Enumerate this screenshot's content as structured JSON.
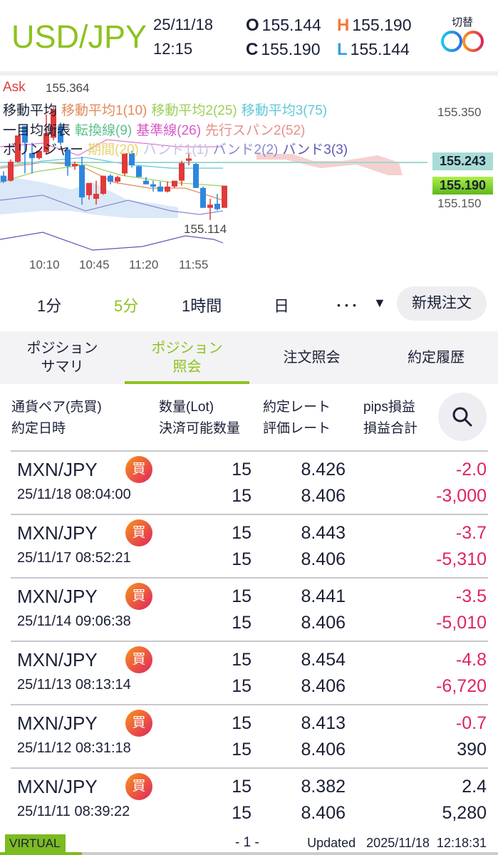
{
  "header": {
    "symbol": "USD/JPY",
    "date": "25/11/18",
    "time": "12:15",
    "open_label": "O",
    "open": "155.144",
    "high_label": "H",
    "high": "155.190",
    "close_label": "C",
    "close": "155.190",
    "low_label": "L",
    "low": "155.144",
    "switch_label": "切替",
    "switch_icon": "double-ring-icon"
  },
  "chart": {
    "price_type": "Ask",
    "legend": {
      "ma": {
        "label": "移動平均",
        "items": [
          {
            "text": "移動平均1(10)",
            "color": "#e08a5a"
          },
          {
            "text": "移動平均2(25)",
            "color": "#9ccf5a"
          },
          {
            "text": "移動平均3(75)",
            "color": "#5fc8d8"
          }
        ]
      },
      "ichimoku": {
        "label": "一目均衡表",
        "items": [
          {
            "text": "転換線(9)",
            "color": "#5cc08a"
          },
          {
            "text": "基準線(26)",
            "color": "#d75ac8"
          },
          {
            "text": "先行スパン2(52)",
            "color": "#e6908a"
          }
        ]
      },
      "bollinger": {
        "label": "ボリンジャー",
        "items": [
          {
            "text": "期間(20)",
            "color": "#e6d36a"
          },
          {
            "text": "バンド1(1)",
            "color": "#c4c4e4"
          },
          {
            "text": "バンド2(2)",
            "color": "#8a8ad0"
          },
          {
            "text": "バンド3(3)",
            "color": "#5a5ab8"
          }
        ]
      }
    },
    "high_marker": "155.364",
    "low_marker": "155.114",
    "price_ticks": [
      "155.350",
      "155.150"
    ],
    "ask_price": "155.243",
    "last_price": "155.190",
    "time_ticks": [
      "10:10",
      "10:45",
      "11:20",
      "11:55"
    ],
    "up_color": "#e03a3a",
    "down_color": "#2e86de",
    "candles": [
      [
        155.212,
        155.222,
        155.196,
        155.199
      ],
      [
        155.201,
        155.248,
        155.199,
        155.243
      ],
      [
        155.243,
        155.301,
        155.24,
        155.301
      ],
      [
        155.322,
        155.322,
        155.217,
        155.285
      ],
      [
        155.262,
        155.285,
        155.217,
        155.251
      ],
      [
        155.251,
        155.267,
        155.248,
        155.267
      ],
      [
        155.264,
        155.348,
        155.259,
        155.306
      ],
      [
        155.296,
        155.364,
        155.29,
        155.359
      ],
      [
        155.322,
        155.33,
        155.28,
        155.285
      ],
      [
        155.27,
        155.275,
        155.212,
        155.233
      ],
      [
        155.233,
        155.243,
        155.225,
        155.238
      ],
      [
        155.235,
        155.254,
        155.148,
        155.164
      ],
      [
        155.169,
        155.196,
        155.159,
        155.196
      ],
      [
        155.161,
        155.201,
        155.148,
        155.172
      ],
      [
        155.172,
        155.212,
        155.17,
        155.212
      ],
      [
        155.212,
        155.215,
        155.193,
        155.199
      ],
      [
        155.199,
        155.212,
        155.196,
        155.209
      ],
      [
        155.217,
        155.262,
        155.212,
        155.262
      ],
      [
        155.262,
        155.267,
        155.23,
        155.235
      ],
      [
        155.233,
        155.235,
        155.209,
        155.209
      ],
      [
        155.201,
        155.209,
        155.193,
        155.193
      ],
      [
        155.193,
        155.201,
        155.177,
        155.188
      ],
      [
        155.188,
        155.199,
        155.177,
        155.177
      ],
      [
        155.177,
        155.199,
        155.175,
        155.188
      ],
      [
        155.188,
        155.201,
        155.185,
        155.201
      ],
      [
        155.201,
        155.245,
        155.19,
        155.24
      ],
      [
        155.245,
        155.262,
        155.235,
        155.25
      ],
      [
        155.238,
        155.24,
        155.185,
        155.185
      ],
      [
        155.185,
        155.188,
        155.141,
        155.141
      ],
      [
        155.141,
        155.161,
        155.114,
        155.148
      ],
      [
        155.15,
        155.172,
        155.135,
        155.138
      ],
      [
        155.141,
        155.19,
        155.141,
        155.19
      ]
    ]
  },
  "timeframes": {
    "items": [
      "1分",
      "5分",
      "1時間",
      "日"
    ],
    "active": 1,
    "more": "･･･",
    "dropdown": "▼",
    "new_order": "新規注文"
  },
  "tabs": [
    {
      "line1": "ポジション",
      "line2": "サマリ"
    },
    {
      "line1": "ポジション",
      "line2": "照会"
    },
    {
      "line1": "注文照会",
      "line2": ""
    },
    {
      "line1": "約定履歴",
      "line2": ""
    }
  ],
  "columns": {
    "c1a": "通貨ペア(売買)",
    "c1b": "約定日時",
    "c2a": "数量(Lot)",
    "c2b": "決済可能数量",
    "c3a": "約定レート",
    "c3b": "評価レート",
    "c4a": "pips損益",
    "c4b": "損益合計"
  },
  "rows": [
    {
      "pair": "MXN/JPY",
      "side": "買",
      "date": "25/11/18 08:04:00",
      "qty": "15",
      "qty_avail": "15",
      "rate": "8.426",
      "eval_rate": "8.406",
      "pips": "-2.0",
      "pl": "-3,000"
    },
    {
      "pair": "MXN/JPY",
      "side": "買",
      "date": "25/11/17 08:52:21",
      "qty": "15",
      "qty_avail": "15",
      "rate": "8.443",
      "eval_rate": "8.406",
      "pips": "-3.7",
      "pl": "-5,310"
    },
    {
      "pair": "MXN/JPY",
      "side": "買",
      "date": "25/11/14 09:06:38",
      "qty": "15",
      "qty_avail": "15",
      "rate": "8.441",
      "eval_rate": "8.406",
      "pips": "-3.5",
      "pl": "-5,010"
    },
    {
      "pair": "MXN/JPY",
      "side": "買",
      "date": "25/11/13 08:13:14",
      "qty": "15",
      "qty_avail": "15",
      "rate": "8.454",
      "eval_rate": "8.406",
      "pips": "-4.8",
      "pl": "-6,720"
    },
    {
      "pair": "MXN/JPY",
      "side": "買",
      "date": "25/11/12 08:31:18",
      "qty": "15",
      "qty_avail": "15",
      "rate": "8.413",
      "eval_rate": "8.406",
      "pips": "-0.7",
      "pl": "390"
    },
    {
      "pair": "MXN/JPY",
      "side": "買",
      "date": "25/11/11 08:39:22",
      "qty": "15",
      "qty_avail": "15",
      "rate": "8.382",
      "eval_rate": "8.406",
      "pips": "2.4",
      "pl": "5,280"
    }
  ],
  "pager": "- 1 -",
  "footer": {
    "mode": "VIRTUAL",
    "updated_label": "Updated",
    "updated": "2025/11/18  12:18:31",
    "progress": 0.165
  }
}
